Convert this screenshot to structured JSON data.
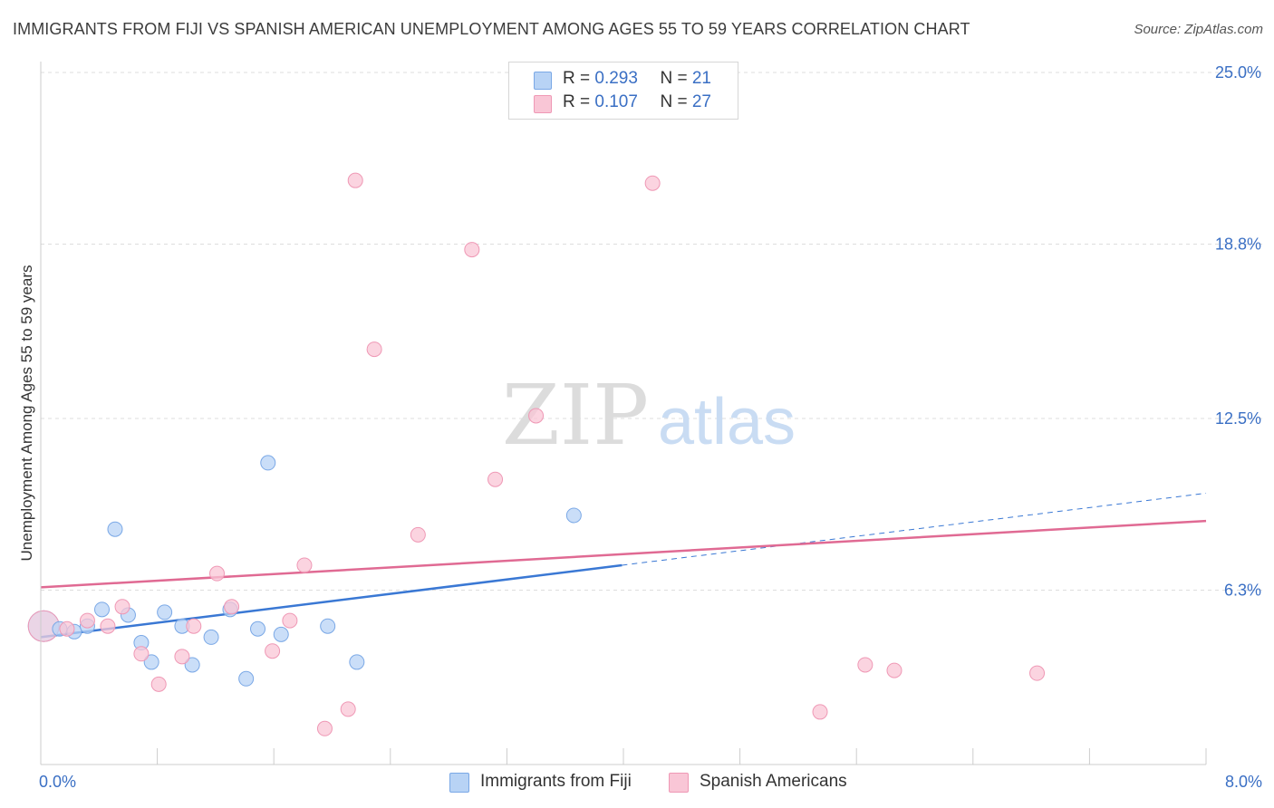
{
  "title": "IMMIGRANTS FROM FIJI VS SPANISH AMERICAN UNEMPLOYMENT AMONG AGES 55 TO 59 YEARS CORRELATION CHART",
  "source": "Source: ZipAtlas.com",
  "watermark": {
    "zip": "ZIP",
    "atlas": "atlas"
  },
  "legend": {
    "fiji": {
      "r_label": "R = ",
      "r_value": "0.293",
      "n_label": "N = ",
      "n_value": "21"
    },
    "spanish": {
      "r_label": "R = ",
      "r_value": "0.107",
      "n_label": "N = ",
      "n_value": "27"
    }
  },
  "colors": {
    "fiji_fill": "#b8d3f5",
    "fiji_stroke": "#7aa8e6",
    "fiji_line": "#3a78d4",
    "spanish_fill": "#f9c6d6",
    "spanish_stroke": "#ef98b5",
    "spanish_line": "#e06a93",
    "tick_label": "#3a6fc4",
    "grid": "#dddddd"
  },
  "chart_data": {
    "type": "scatter",
    "title": "IMMIGRANTS FROM FIJI VS SPANISH AMERICAN UNEMPLOYMENT AMONG AGES 55 TO 59 YEARS CORRELATION CHART",
    "xlabel": "",
    "ylabel": "Unemployment Among Ages 55 to 59 years",
    "xlim": [
      0,
      8.0
    ],
    "ylim": [
      0,
      25.0
    ],
    "x_tick_labels": [
      "0.0%",
      "8.0%"
    ],
    "y_ticks": [
      6.3,
      12.5,
      18.8,
      25.0
    ],
    "y_tick_labels": [
      "6.3%",
      "12.5%",
      "18.8%",
      "25.0%"
    ],
    "legend_position": "top-center",
    "series": [
      {
        "name": "Immigrants from Fiji",
        "R": 0.293,
        "N": 21,
        "points": [
          {
            "x": 0.02,
            "y": 5.0,
            "big": true
          },
          {
            "x": 0.13,
            "y": 4.9
          },
          {
            "x": 0.23,
            "y": 4.8
          },
          {
            "x": 0.32,
            "y": 5.0
          },
          {
            "x": 0.42,
            "y": 5.6
          },
          {
            "x": 0.51,
            "y": 8.5
          },
          {
            "x": 0.6,
            "y": 5.4
          },
          {
            "x": 0.69,
            "y": 4.4
          },
          {
            "x": 0.76,
            "y": 3.7
          },
          {
            "x": 0.85,
            "y": 5.5
          },
          {
            "x": 0.97,
            "y": 5.0
          },
          {
            "x": 1.04,
            "y": 3.6
          },
          {
            "x": 1.17,
            "y": 4.6
          },
          {
            "x": 1.3,
            "y": 5.6
          },
          {
            "x": 1.41,
            "y": 3.1
          },
          {
            "x": 1.49,
            "y": 4.9
          },
          {
            "x": 1.56,
            "y": 10.9
          },
          {
            "x": 1.65,
            "y": 4.7
          },
          {
            "x": 1.97,
            "y": 5.0
          },
          {
            "x": 2.17,
            "y": 3.7
          },
          {
            "x": 3.66,
            "y": 9.0
          }
        ],
        "trend": {
          "x0": 0.0,
          "y0": 4.6,
          "x1": 3.99,
          "y1": 7.2,
          "dashed_to_x": 8.0,
          "dashed_to_y": 9.8
        }
      },
      {
        "name": "Spanish Americans",
        "R": 0.107,
        "N": 27,
        "points": [
          {
            "x": 0.02,
            "y": 5.0,
            "big": true
          },
          {
            "x": 0.18,
            "y": 4.9
          },
          {
            "x": 0.32,
            "y": 5.2
          },
          {
            "x": 0.46,
            "y": 5.0
          },
          {
            "x": 0.56,
            "y": 5.7
          },
          {
            "x": 0.69,
            "y": 4.0
          },
          {
            "x": 0.81,
            "y": 2.9
          },
          {
            "x": 0.97,
            "y": 3.9
          },
          {
            "x": 1.05,
            "y": 5.0
          },
          {
            "x": 1.21,
            "y": 6.9
          },
          {
            "x": 1.31,
            "y": 5.7
          },
          {
            "x": 1.59,
            "y": 4.1
          },
          {
            "x": 1.71,
            "y": 5.2
          },
          {
            "x": 1.81,
            "y": 7.2
          },
          {
            "x": 1.95,
            "y": 1.3
          },
          {
            "x": 2.11,
            "y": 2.0
          },
          {
            "x": 2.16,
            "y": 21.1
          },
          {
            "x": 2.29,
            "y": 15.0
          },
          {
            "x": 2.59,
            "y": 8.3
          },
          {
            "x": 2.96,
            "y": 18.6
          },
          {
            "x": 3.12,
            "y": 10.3
          },
          {
            "x": 3.4,
            "y": 12.6
          },
          {
            "x": 4.2,
            "y": 21.0
          },
          {
            "x": 5.35,
            "y": 1.9
          },
          {
            "x": 5.66,
            "y": 3.6
          },
          {
            "x": 5.86,
            "y": 3.4
          },
          {
            "x": 6.84,
            "y": 3.3
          }
        ],
        "trend": {
          "x0": 0.0,
          "y0": 6.4,
          "x1": 8.0,
          "y1": 8.8
        }
      }
    ]
  }
}
